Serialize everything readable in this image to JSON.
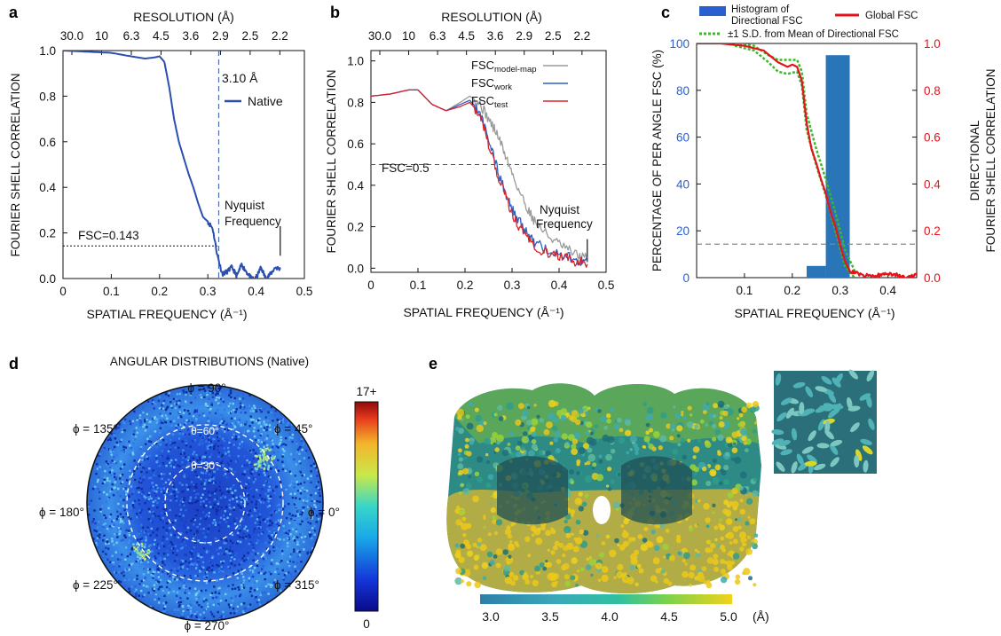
{
  "panels": {
    "a": {
      "label": "a",
      "top_axis_title": "RESOLUTION (Å)",
      "top_ticks": [
        "30.0",
        "10",
        "6.3",
        "4.5",
        "3.6",
        "2.9",
        "2.5",
        "2.2"
      ],
      "ylabel": "FOURIER SHELL CORRELATION",
      "xlabel": "SPATIAL FREQUENCY (Å⁻¹)",
      "resolution_label": "3.10 Å",
      "legend_label": "Native",
      "threshold_label": "FSC=0.143",
      "nyquist_label_1": "Nyquist",
      "nyquist_label_2": "Frequency"
    },
    "b": {
      "label": "b",
      "top_axis_title": "RESOLUTION (Å)",
      "top_ticks": [
        "30.0",
        "10",
        "6.3",
        "4.5",
        "3.6",
        "2.9",
        "2.5",
        "2.2"
      ],
      "ylabel": "FOURIER SHELL CORRELATION",
      "xlabel": "SPATIAL FREQUENCY (Å⁻¹)",
      "legend": [
        {
          "base": "FSC",
          "sub": "model-map",
          "color": "#9a9a9a"
        },
        {
          "base": "FSC",
          "sub": "work",
          "color": "#2f5fbf"
        },
        {
          "base": "FSC",
          "sub": "test",
          "color": "#d8222a"
        }
      ],
      "threshold_label": "FSC=0.5",
      "nyquist_label_1": "Nyquist",
      "nyquist_label_2": "Frequency"
    },
    "c": {
      "label": "c",
      "legend_hist_1": "Histogram of",
      "legend_hist_2": "Directional FSC",
      "legend_global": "Global FSC",
      "legend_sd": "±1 S.D. from Mean of Directional FSC",
      "ylabel_left": "PERCENTAGE OF PER ANGLE FSC (%)",
      "ylabel_right_1": "DIRECTIONAL",
      "ylabel_right_2": "FOURIER SHELL CORRELATION",
      "xlabel": "SPATIAL FREQUENCY (Å⁻¹)",
      "colors": {
        "hist": "#2a74b8",
        "global": "#e3141b",
        "sd": "#3cb82d",
        "left_axis": "#2a5fd0",
        "right_axis": "#e3141b"
      }
    },
    "d": {
      "label": "d",
      "title": "ANGULAR DISTRIBUTIONS (Native)",
      "phi_labels": [
        "ϕ = 90°",
        "ϕ = 45°",
        "ϕ = 0°",
        "ϕ = 315°",
        "ϕ = 270°",
        "ϕ = 225°",
        "ϕ = 180°",
        "ϕ = 135°"
      ],
      "theta_labels": [
        "θ=60°",
        "θ=30°"
      ],
      "colorbar_max": "17+",
      "colorbar_min": "0"
    },
    "e": {
      "label": "e",
      "colorbar_ticks": [
        "3.0",
        "3.5",
        "4.0",
        "4.5",
        "5.0"
      ],
      "colorbar_unit": "(Å)"
    }
  },
  "chart_data": [
    {
      "type": "line",
      "panel": "a",
      "xlabel": "SPATIAL FREQUENCY (Å⁻¹)",
      "ylabel": "FOURIER SHELL CORRELATION",
      "xlim": [
        0,
        0.5
      ],
      "ylim": [
        0,
        1.0
      ],
      "xticks": [
        "0",
        "0.1",
        "0.2",
        "0.3",
        "0.4",
        "0.5"
      ],
      "yticks": [
        "0.0",
        "0.2",
        "0.4",
        "0.6",
        "0.8",
        "1.0"
      ],
      "series": [
        {
          "name": "Native",
          "color": "#2a4fb0",
          "x": [
            0,
            0.05,
            0.1,
            0.14,
            0.17,
            0.19,
            0.2,
            0.21,
            0.22,
            0.23,
            0.24,
            0.25,
            0.26,
            0.27,
            0.28,
            0.29,
            0.3,
            0.31,
            0.32,
            0.33,
            0.34,
            0.35,
            0.36,
            0.37,
            0.38,
            0.39,
            0.4,
            0.41,
            0.42,
            0.43,
            0.44,
            0.45
          ],
          "y": [
            1.0,
            0.995,
            0.99,
            0.975,
            0.965,
            0.97,
            0.975,
            0.95,
            0.84,
            0.7,
            0.6,
            0.53,
            0.46,
            0.4,
            0.33,
            0.27,
            0.25,
            0.22,
            0.1,
            0.02,
            0.03,
            0.05,
            0.01,
            0.06,
            0.03,
            0.0,
            0.0,
            0.05,
            0.0,
            0.02,
            0.05,
            0.04
          ]
        }
      ],
      "thresholds": {
        "fsc": 0.143,
        "resolution_frequency": 0.3226,
        "nyquist_frequency": 0.45
      }
    },
    {
      "type": "line",
      "panel": "b",
      "xlabel": "SPATIAL FREQUENCY (Å⁻¹)",
      "ylabel": "FOURIER SHELL CORRELATION",
      "xlim": [
        0,
        0.5
      ],
      "ylim": [
        0,
        1.0
      ],
      "xticks": [
        "0",
        "0.1",
        "0.2",
        "0.3",
        "0.4",
        "0.5"
      ],
      "yticks": [
        "0.0",
        "0.2",
        "0.4",
        "0.6",
        "0.8",
        "1.0"
      ],
      "series": [
        {
          "name": "FSC model-map",
          "color": "#9a9a9a",
          "x": [
            0,
            0.04,
            0.08,
            0.1,
            0.13,
            0.16,
            0.19,
            0.21,
            0.23,
            0.25,
            0.27,
            0.29,
            0.31,
            0.33,
            0.35,
            0.38,
            0.41,
            0.44,
            0.46
          ],
          "y": [
            0.83,
            0.84,
            0.86,
            0.86,
            0.79,
            0.76,
            0.8,
            0.83,
            0.8,
            0.72,
            0.64,
            0.52,
            0.4,
            0.3,
            0.22,
            0.15,
            0.1,
            0.06,
            0.05
          ]
        },
        {
          "name": "FSC work",
          "color": "#2f5fbf",
          "x": [
            0,
            0.04,
            0.08,
            0.1,
            0.13,
            0.16,
            0.19,
            0.21,
            0.23,
            0.25,
            0.27,
            0.29,
            0.31,
            0.33,
            0.35,
            0.38,
            0.41,
            0.44,
            0.46
          ],
          "y": [
            0.83,
            0.84,
            0.86,
            0.86,
            0.79,
            0.76,
            0.79,
            0.81,
            0.76,
            0.62,
            0.47,
            0.34,
            0.24,
            0.18,
            0.12,
            0.08,
            0.06,
            0.04,
            0.03
          ]
        },
        {
          "name": "FSC test",
          "color": "#d8222a",
          "x": [
            0,
            0.04,
            0.08,
            0.1,
            0.13,
            0.16,
            0.19,
            0.21,
            0.23,
            0.25,
            0.27,
            0.29,
            0.31,
            0.33,
            0.35,
            0.38,
            0.41,
            0.44,
            0.46
          ],
          "y": [
            0.83,
            0.84,
            0.86,
            0.86,
            0.79,
            0.76,
            0.78,
            0.8,
            0.75,
            0.6,
            0.45,
            0.32,
            0.22,
            0.16,
            0.1,
            0.07,
            0.05,
            0.03,
            0.02
          ]
        }
      ],
      "thresholds": {
        "fsc": 0.5,
        "nyquist_frequency": 0.46
      }
    },
    {
      "type": "bar",
      "panel": "c",
      "xlabel": "SPATIAL FREQUENCY (Å⁻¹)",
      "ylabel_left": "PERCENTAGE OF PER ANGLE FSC (%)",
      "ylabel_right": "DIRECTIONAL FOURIER SHELL CORRELATION",
      "xlim": [
        0,
        0.46
      ],
      "ylim_left": [
        0,
        100
      ],
      "ylim_right": [
        0,
        1.0
      ],
      "xticks": [
        "0.1",
        "0.2",
        "0.3",
        "0.4"
      ],
      "yticks_left": [
        "0",
        "20",
        "40",
        "60",
        "80",
        "100"
      ],
      "yticks_right": [
        "0.0",
        "0.2",
        "0.4",
        "0.6",
        "0.8",
        "1.0"
      ],
      "histogram": {
        "name": "Histogram of Directional FSC",
        "bins": [
          [
            0.23,
            0.27
          ],
          [
            0.27,
            0.32
          ]
        ],
        "values": [
          5,
          95
        ]
      },
      "series": [
        {
          "name": "Global FSC",
          "x": [
            0,
            0.05,
            0.1,
            0.14,
            0.17,
            0.19,
            0.2,
            0.21,
            0.22,
            0.23,
            0.24,
            0.25,
            0.26,
            0.27,
            0.28,
            0.29,
            0.3,
            0.31,
            0.32,
            0.33,
            0.35,
            0.38,
            0.4,
            0.42,
            0.44,
            0.46
          ],
          "y": [
            1.0,
            1.0,
            0.99,
            0.97,
            0.92,
            0.9,
            0.91,
            0.9,
            0.84,
            0.66,
            0.55,
            0.49,
            0.42,
            0.36,
            0.28,
            0.22,
            0.14,
            0.07,
            0.03,
            0.02,
            0.01,
            0.01,
            0.02,
            0.01,
            0.0,
            0.01
          ]
        },
        {
          "name": "±1 S.D. from Mean of Directional FSC",
          "x": [
            0.08,
            0.12,
            0.15,
            0.17,
            0.19,
            0.21,
            0.22,
            0.23,
            0.25,
            0.27,
            0.29,
            0.31,
            0.33
          ],
          "y": [
            0.99,
            0.97,
            0.92,
            0.88,
            0.87,
            0.88,
            0.82,
            0.63,
            0.48,
            0.35,
            0.2,
            0.05,
            0.0
          ]
        },
        {
          "name": "±1 S.D. from Mean of Directional FSC",
          "x": [
            0.08,
            0.12,
            0.15,
            0.17,
            0.19,
            0.21,
            0.22,
            0.23,
            0.25,
            0.27,
            0.29,
            0.31,
            0.33
          ],
          "y": [
            1.0,
            0.99,
            0.95,
            0.93,
            0.93,
            0.93,
            0.88,
            0.7,
            0.55,
            0.42,
            0.28,
            0.12,
            0.03
          ]
        }
      ],
      "thresholds": {
        "fsc": 0.143
      }
    }
  ]
}
